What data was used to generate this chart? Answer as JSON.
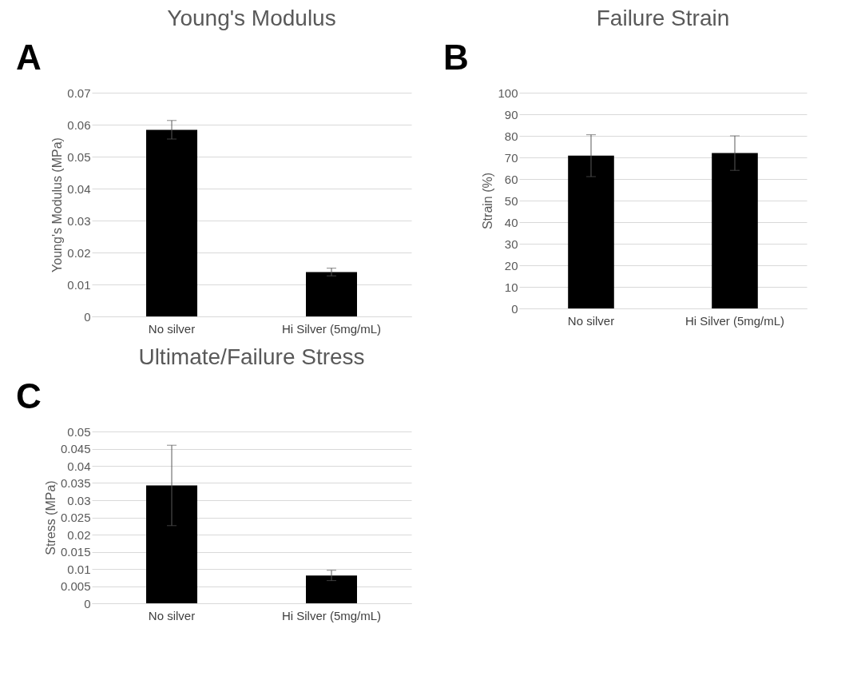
{
  "chart_data": [
    {
      "type": "bar",
      "title": "Young's Modulus",
      "ylabel": "Young's Modulus (MPa)",
      "annotations": [
        "A"
      ],
      "categories": [
        "No silver",
        "Hi Silver (5mg/mL)"
      ],
      "values": [
        0.0584,
        0.0139
      ],
      "errors": [
        0.0029,
        0.0012
      ],
      "color": "#000000",
      "ylim": [
        0,
        0.07
      ],
      "yticks": [
        0,
        0.01,
        0.02,
        0.03,
        0.04,
        0.05,
        0.06,
        0.07
      ],
      "grid": "y"
    },
    {
      "type": "bar",
      "title": "Failure Strain",
      "ylabel": "Strain (%)",
      "annotations": [
        "B"
      ],
      "categories": [
        "No silver",
        "Hi Silver (5mg/mL)"
      ],
      "values": [
        70.8,
        72.0
      ],
      "errors": [
        9.7,
        8.0
      ],
      "color": "#000000",
      "ylim": [
        0,
        100
      ],
      "yticks": [
        0,
        10,
        20,
        30,
        40,
        50,
        60,
        70,
        80,
        90,
        100
      ],
      "grid": "y"
    },
    {
      "type": "bar",
      "title": "Ultimate/Failure Stress",
      "ylabel": "Stress (MPa)",
      "annotations": [
        "C"
      ],
      "categories": [
        "No silver",
        "Hi Silver (5mg/mL)"
      ],
      "values": [
        0.0343,
        0.0081
      ],
      "errors": [
        0.0117,
        0.0015
      ],
      "color": "#000000",
      "ylim": [
        0,
        0.05
      ],
      "yticks": [
        0,
        0.005,
        0.01,
        0.015,
        0.02,
        0.025,
        0.03,
        0.035,
        0.04,
        0.045,
        0.05
      ],
      "grid": "y"
    }
  ]
}
